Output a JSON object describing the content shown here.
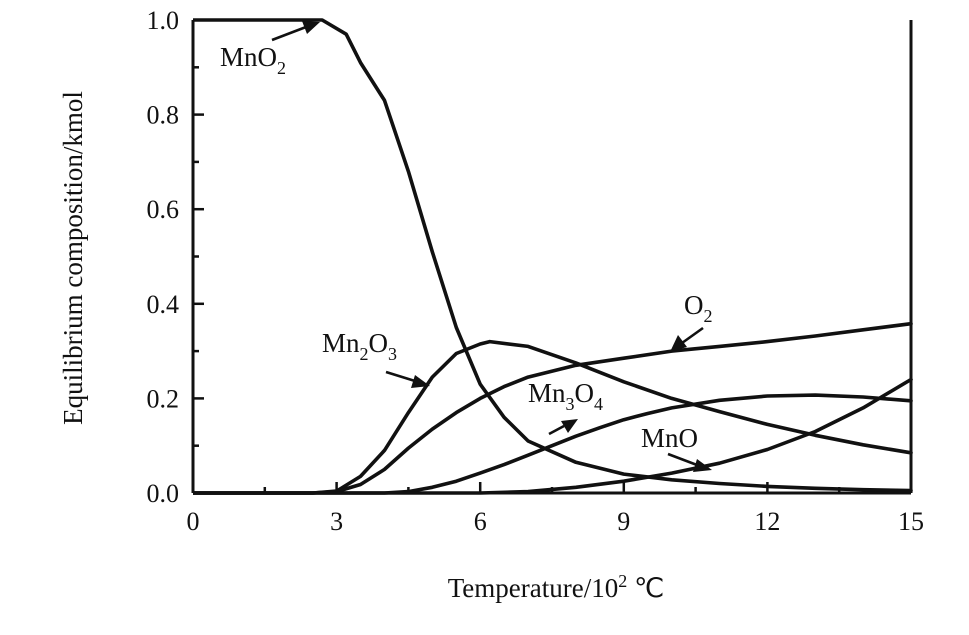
{
  "chart_data": {
    "type": "line",
    "xlabel_main": "Temperature/10",
    "xlabel_sup": "2",
    "xlabel_unit": " ℃",
    "ylabel": "Equilibrium composition/kmol",
    "xlim": [
      0,
      15
    ],
    "ylim": [
      0,
      1.0
    ],
    "x_ticks": [
      "0",
      "3",
      "6",
      "9",
      "12",
      "15"
    ],
    "y_ticks": [
      "0.0",
      "0.2",
      "0.4",
      "0.6",
      "0.8",
      "1.0"
    ],
    "grid": false,
    "series": [
      {
        "name": "MnO2",
        "label_main": "MnO",
        "label_sub": "2",
        "points": [
          [
            0,
            1.0
          ],
          [
            2.5,
            1.0
          ],
          [
            2.7,
            1.0
          ],
          [
            3.2,
            0.97
          ],
          [
            3.5,
            0.91
          ],
          [
            4.0,
            0.83
          ],
          [
            4.5,
            0.68
          ],
          [
            5.0,
            0.51
          ],
          [
            5.5,
            0.35
          ],
          [
            6.0,
            0.23
          ],
          [
            6.5,
            0.16
          ],
          [
            7.0,
            0.11
          ],
          [
            8.0,
            0.065
          ],
          [
            9.0,
            0.04
          ],
          [
            10.0,
            0.028
          ],
          [
            11.0,
            0.02
          ],
          [
            12.0,
            0.014
          ],
          [
            13.0,
            0.01
          ],
          [
            14.0,
            0.007
          ],
          [
            15.0,
            0.005
          ]
        ]
      },
      {
        "name": "Mn2O3",
        "label_main": "Mn",
        "label_sub": "2",
        "label_main2": "O",
        "label_sub2": "3",
        "points": [
          [
            0,
            0
          ],
          [
            2.5,
            0
          ],
          [
            3.0,
            0.004
          ],
          [
            3.5,
            0.035
          ],
          [
            4.0,
            0.09
          ],
          [
            4.5,
            0.17
          ],
          [
            5.0,
            0.245
          ],
          [
            5.5,
            0.295
          ],
          [
            6.0,
            0.315
          ],
          [
            6.2,
            0.32
          ],
          [
            7.0,
            0.31
          ],
          [
            8.0,
            0.275
          ],
          [
            9.0,
            0.235
          ],
          [
            10.0,
            0.2
          ],
          [
            11.0,
            0.172
          ],
          [
            12.0,
            0.145
          ],
          [
            13.0,
            0.122
          ],
          [
            14.0,
            0.102
          ],
          [
            15.0,
            0.085
          ]
        ]
      },
      {
        "name": "O2",
        "label_main": "O",
        "label_sub": "2",
        "points": [
          [
            0,
            0
          ],
          [
            2.5,
            0
          ],
          [
            3.0,
            0.003
          ],
          [
            3.5,
            0.018
          ],
          [
            4.0,
            0.05
          ],
          [
            4.5,
            0.095
          ],
          [
            5.0,
            0.135
          ],
          [
            5.5,
            0.17
          ],
          [
            6.0,
            0.2
          ],
          [
            6.5,
            0.225
          ],
          [
            7.0,
            0.245
          ],
          [
            8.0,
            0.27
          ],
          [
            9.0,
            0.285
          ],
          [
            10.0,
            0.3
          ],
          [
            11.0,
            0.31
          ],
          [
            12.0,
            0.32
          ],
          [
            13.0,
            0.332
          ],
          [
            14.0,
            0.345
          ],
          [
            15.0,
            0.358
          ]
        ]
      },
      {
        "name": "Mn3O4",
        "label_main": "Mn",
        "label_sub": "3",
        "label_main2": "O",
        "label_sub2": "4",
        "points": [
          [
            0,
            0
          ],
          [
            4.0,
            0
          ],
          [
            4.5,
            0.003
          ],
          [
            5.0,
            0.012
          ],
          [
            5.5,
            0.025
          ],
          [
            6.0,
            0.042
          ],
          [
            6.5,
            0.06
          ],
          [
            7.0,
            0.08
          ],
          [
            7.5,
            0.1
          ],
          [
            8.0,
            0.12
          ],
          [
            8.5,
            0.138
          ],
          [
            9.0,
            0.155
          ],
          [
            9.5,
            0.168
          ],
          [
            10.0,
            0.18
          ],
          [
            11.0,
            0.196
          ],
          [
            12.0,
            0.205
          ],
          [
            13.0,
            0.207
          ],
          [
            14.0,
            0.203
          ],
          [
            15.0,
            0.195
          ]
        ]
      },
      {
        "name": "MnO",
        "label_main": "MnO",
        "points": [
          [
            0,
            0
          ],
          [
            6.0,
            0
          ],
          [
            7.0,
            0.003
          ],
          [
            8.0,
            0.012
          ],
          [
            9.0,
            0.025
          ],
          [
            10.0,
            0.042
          ],
          [
            11.0,
            0.063
          ],
          [
            12.0,
            0.092
          ],
          [
            13.0,
            0.13
          ],
          [
            14.0,
            0.18
          ],
          [
            15.0,
            0.24
          ]
        ]
      }
    ]
  }
}
